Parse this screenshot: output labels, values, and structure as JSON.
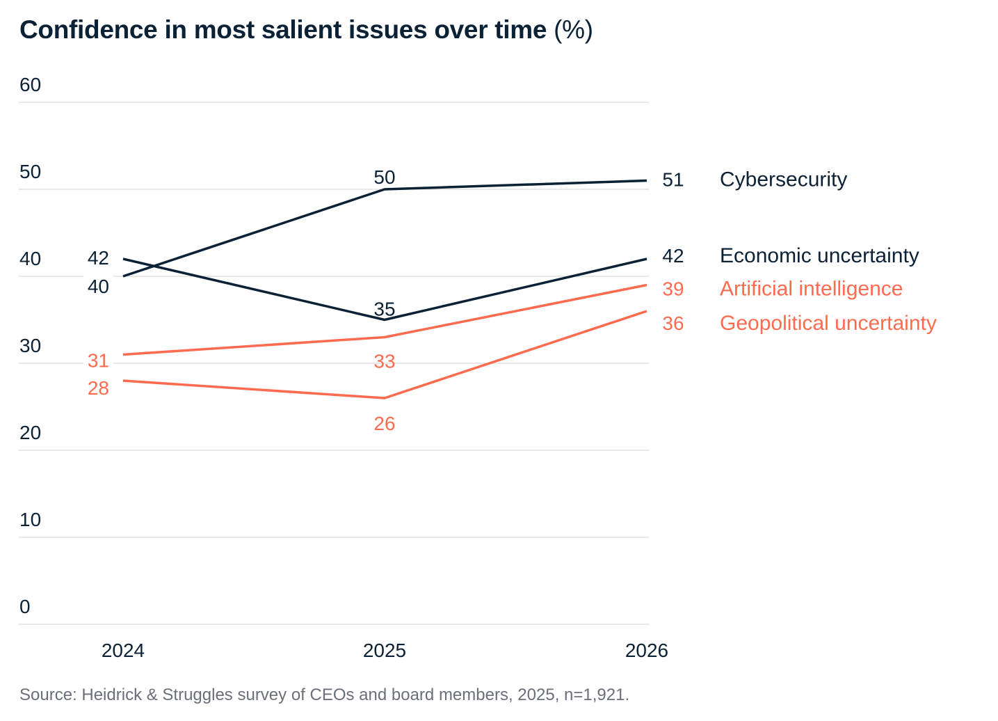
{
  "chart_data": {
    "type": "line",
    "title": "Confidence in most salient issues over time",
    "title_unit": "(%)",
    "categories": [
      "2024",
      "2025",
      "2026"
    ],
    "ylim": [
      0,
      60
    ],
    "yticks": [
      0,
      10,
      20,
      30,
      40,
      50,
      60
    ],
    "grid": true,
    "legend": "right, labels at line ends",
    "series": [
      {
        "name": "Cybersecurity",
        "values": [
          40,
          50,
          51
        ],
        "color": "#0b2135"
      },
      {
        "name": "Economic uncertainty",
        "values": [
          42,
          35,
          42
        ],
        "color": "#0b2135"
      },
      {
        "name": "Artificial intelligence",
        "values": [
          31,
          33,
          39
        ],
        "color": "#ff6b4f"
      },
      {
        "name": "Geopolitical uncertainty",
        "values": [
          28,
          26,
          36
        ],
        "color": "#ff6b4f"
      }
    ],
    "source": "Source: Heidrick & Struggles survey of CEOs and board members, 2025, n=1,921."
  }
}
